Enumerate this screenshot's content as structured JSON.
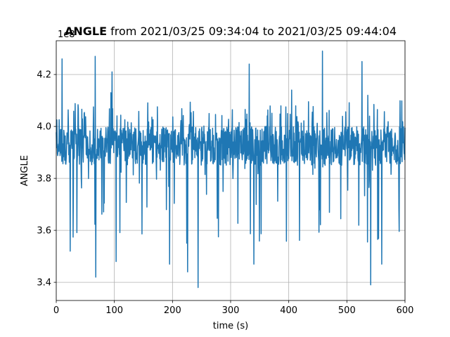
{
  "chart_data": {
    "type": "line",
    "title_bold": "ANGLE",
    "title_rest": " from 2021/03/25 09:34:04 to 2021/03/25 09:44:04",
    "xlabel": "time (s)",
    "ylabel": "ANGLE",
    "offset_text": "1e8",
    "xlim": [
      0,
      600
    ],
    "ylim": [
      3.33,
      4.33
    ],
    "x_ticks": [
      0,
      100,
      200,
      300,
      400,
      500,
      600
    ],
    "x_tick_labels": [
      "0",
      "100",
      "200",
      "300",
      "400",
      "500",
      "600"
    ],
    "y_ticks": [
      3.4,
      3.6,
      3.8,
      4.0,
      4.2
    ],
    "y_tick_labels": [
      "3.4",
      "3.6",
      "3.8",
      "4.0",
      "4.2"
    ],
    "grid": true,
    "series_color": "#1f77b4",
    "x": [
      0,
      600
    ],
    "series": [
      {
        "values": [
          3.92,
          3.92
        ],
        "band": {
          "low": 3.85,
          "high": 4.0
        },
        "spikes_up": [
          {
            "x": 10,
            "y": 4.26
          },
          {
            "x": 67,
            "y": 4.27
          },
          {
            "x": 94,
            "y": 4.13
          },
          {
            "x": 96,
            "y": 4.21
          },
          {
            "x": 332,
            "y": 4.24
          },
          {
            "x": 405,
            "y": 4.14
          },
          {
            "x": 458,
            "y": 4.29
          },
          {
            "x": 526,
            "y": 4.25
          },
          {
            "x": 536,
            "y": 4.12
          }
        ],
        "spikes_down": [
          {
            "x": 24,
            "y": 3.52
          },
          {
            "x": 68,
            "y": 3.42
          },
          {
            "x": 103,
            "y": 3.48
          },
          {
            "x": 195,
            "y": 3.47
          },
          {
            "x": 226,
            "y": 3.44
          },
          {
            "x": 244,
            "y": 3.38
          },
          {
            "x": 340,
            "y": 3.47
          },
          {
            "x": 541,
            "y": 3.39
          },
          {
            "x": 560,
            "y": 3.47
          }
        ]
      }
    ]
  }
}
